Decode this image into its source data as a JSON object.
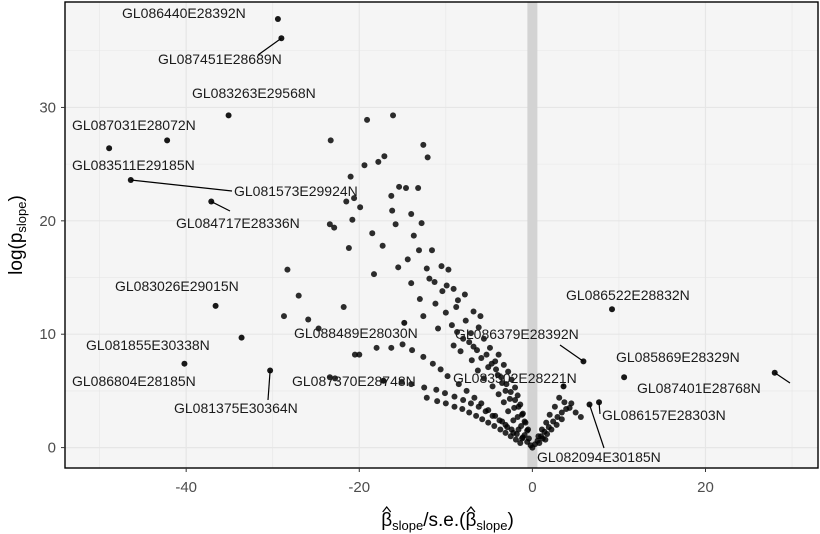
{
  "chart_data": {
    "type": "scatter",
    "title": "",
    "xlabel_parts": {
      "base": "β",
      "sub": "slope",
      "mid": "/s.e.(",
      "base2": "β",
      "sub2": "slope",
      "end": ")"
    },
    "ylabel_parts": {
      "base": "log(p",
      "sub": "slope",
      "end": ")"
    },
    "xlim": [
      -54,
      33
    ],
    "ylim": [
      -1.8,
      39.3
    ],
    "x_ticks": [
      -40,
      -20,
      0,
      20
    ],
    "y_ticks": [
      0,
      10,
      20,
      30
    ],
    "grid": true,
    "reference_band_x": 0,
    "colors": {
      "points": "#000000",
      "panel": "#f5f5f5",
      "grid": "#e6e6e6",
      "band": "#d3d3d3",
      "border": "#000000"
    },
    "labeled_points": [
      {
        "label": "GL086440E28392N",
        "x": -29.4,
        "y": 37.8
      },
      {
        "label": "GL087451E28689N",
        "x": -29.0,
        "y": 36.1
      },
      {
        "label": "GL083263E29568N",
        "x": -35.1,
        "y": 29.3
      },
      {
        "label": "GL087031E28072N",
        "x": -42.2,
        "y": 27.1
      },
      {
        "label": "GL083511E29185N",
        "x": -48.9,
        "y": 26.4
      },
      {
        "label": "GL081573E29924N",
        "x": -46.4,
        "y": 23.6
      },
      {
        "label": "GL084717E28336N",
        "x": -37.1,
        "y": 21.7
      },
      {
        "label": "GL083026E29015N",
        "x": -36.6,
        "y": 12.5
      },
      {
        "label": "GL081855E30338N",
        "x": -33.6,
        "y": 9.7
      },
      {
        "label": "GL086804E28185N",
        "x": -40.2,
        "y": 7.4
      },
      {
        "label": "GL081375E30364N",
        "x": -30.3,
        "y": 6.8
      },
      {
        "label": "GL088489E28030N",
        "x": -14.8,
        "y": 11.0
      },
      {
        "label": "GL087370E28748N",
        "x": -17.2,
        "y": 5.9
      },
      {
        "label": "GL086379E28392N",
        "x": 5.9,
        "y": 7.6
      },
      {
        "label": "GL083502E28221N",
        "x": 3.6,
        "y": 5.4
      },
      {
        "label": "GL086522E28832N",
        "x": 9.2,
        "y": 12.2
      },
      {
        "label": "GL085869E28329N",
        "x": 10.6,
        "y": 6.2
      },
      {
        "label": "GL087401E28768N",
        "x": 28.0,
        "y": 6.6
      },
      {
        "label": "GL086157E28303N",
        "x": 7.7,
        "y": 4.0
      },
      {
        "label": "GL082094E30185N",
        "x": 6.6,
        "y": 3.8
      }
    ],
    "points": [
      [
        -16.1,
        29.3
      ],
      [
        -19.1,
        28.9
      ],
      [
        -12.6,
        26.7
      ],
      [
        -23.3,
        27.1
      ],
      [
        -12.1,
        25.6
      ],
      [
        -17.1,
        25.7
      ],
      [
        -17.8,
        25.2
      ],
      [
        -19.4,
        24.9
      ],
      [
        -21.0,
        23.9
      ],
      [
        -15.4,
        23.0
      ],
      [
        -14.6,
        22.9
      ],
      [
        -13.2,
        22.9
      ],
      [
        -20.6,
        22.0
      ],
      [
        -21.5,
        21.7
      ],
      [
        -16.3,
        22.2
      ],
      [
        -14.0,
        20.6
      ],
      [
        -16.2,
        20.9
      ],
      [
        -19.9,
        21.2
      ],
      [
        -20.8,
        20.1
      ],
      [
        -15.8,
        19.7
      ],
      [
        -12.8,
        19.8
      ],
      [
        -23.4,
        19.7
      ],
      [
        -22.9,
        19.4
      ],
      [
        -13.7,
        18.7
      ],
      [
        -18.5,
        18.9
      ],
      [
        -17.3,
        17.8
      ],
      [
        -13.1,
        17.4
      ],
      [
        -11.6,
        17.4
      ],
      [
        -21.2,
        17.6
      ],
      [
        -14.4,
        16.6
      ],
      [
        -10.5,
        16.0
      ],
      [
        -9.7,
        15.7
      ],
      [
        -15.5,
        15.9
      ],
      [
        -18.3,
        15.3
      ],
      [
        -12.2,
        15.8
      ],
      [
        -11.9,
        14.9
      ],
      [
        -11.3,
        14.6
      ],
      [
        -9.9,
        14.3
      ],
      [
        -9.1,
        14.0
      ],
      [
        -14.0,
        14.5
      ],
      [
        -10.4,
        13.8
      ],
      [
        -7.8,
        13.5
      ],
      [
        -13.0,
        13.1
      ],
      [
        -8.6,
        13.0
      ],
      [
        -11.2,
        12.7
      ],
      [
        -8.8,
        12.4
      ],
      [
        -6.8,
        12.0
      ],
      [
        -10.0,
        11.9
      ],
      [
        -12.6,
        11.6
      ],
      [
        -7.7,
        11.2
      ],
      [
        -9.3,
        10.8
      ],
      [
        -6.2,
        10.6
      ],
      [
        -8.7,
        10.2
      ],
      [
        -10.9,
        10.5
      ],
      [
        -5.6,
        9.6
      ],
      [
        -7.3,
        9.3
      ],
      [
        -9.1,
        9.0
      ],
      [
        -4.9,
        8.8
      ],
      [
        -6.4,
        8.6
      ],
      [
        -8.3,
        8.5
      ],
      [
        -3.9,
        8.2
      ],
      [
        -5.9,
        7.9
      ],
      [
        -4.3,
        7.6
      ],
      [
        -7.0,
        7.7
      ],
      [
        -3.3,
        7.3
      ],
      [
        -5.1,
        7.1
      ],
      [
        -2.8,
        6.7
      ],
      [
        -6.3,
        6.8
      ],
      [
        -4.0,
        6.4
      ],
      [
        -2.4,
        6.0
      ],
      [
        -5.6,
        6.1
      ],
      [
        -3.5,
        5.7
      ],
      [
        -2.0,
        5.3
      ],
      [
        -4.6,
        5.4
      ],
      [
        -3.1,
        5.0
      ],
      [
        -1.7,
        4.6
      ],
      [
        -3.9,
        4.7
      ],
      [
        -2.6,
        4.3
      ],
      [
        -1.4,
        3.8
      ],
      [
        -3.3,
        4.0
      ],
      [
        -2.1,
        3.5
      ],
      [
        -1.1,
        3.0
      ],
      [
        -2.8,
        3.2
      ],
      [
        -1.7,
        2.7
      ],
      [
        -0.8,
        2.2
      ],
      [
        -2.2,
        2.4
      ],
      [
        -1.3,
        1.9
      ],
      [
        -0.6,
        1.5
      ],
      [
        -1.6,
        1.6
      ],
      [
        -0.9,
        1.1
      ],
      [
        -0.4,
        0.8
      ],
      [
        -1.1,
        0.9
      ],
      [
        -0.6,
        0.5
      ],
      [
        -0.2,
        0.2
      ],
      [
        0.0,
        0.0
      ],
      [
        0.3,
        0.3
      ],
      [
        0.6,
        0.6
      ],
      [
        1.0,
        1.0
      ],
      [
        1.4,
        1.4
      ],
      [
        1.9,
        1.8
      ],
      [
        2.4,
        2.3
      ],
      [
        2.9,
        2.7
      ],
      [
        3.4,
        3.1
      ],
      [
        3.9,
        3.4
      ],
      [
        4.5,
        3.9
      ],
      [
        1.2,
        0.8
      ],
      [
        1.7,
        1.2
      ],
      [
        2.2,
        1.6
      ],
      [
        2.8,
        2.0
      ],
      [
        3.4,
        2.5
      ],
      [
        0.8,
        0.4
      ],
      [
        1.5,
        0.7
      ],
      [
        -28.3,
        15.7
      ],
      [
        -27.0,
        13.4
      ],
      [
        -28.7,
        11.6
      ],
      [
        -25.9,
        11.3
      ],
      [
        -24.7,
        10.5
      ],
      [
        -21.8,
        12.4
      ],
      [
        -23.4,
        6.2
      ],
      [
        -22.8,
        6.1
      ],
      [
        -20.5,
        8.2
      ],
      [
        -20.0,
        8.2
      ],
      [
        -18.0,
        8.8
      ],
      [
        -16.3,
        8.8
      ],
      [
        -15.1,
        5.8
      ],
      [
        -14.0,
        5.6
      ],
      [
        -12.5,
        5.3
      ],
      [
        -11.1,
        5.1
      ],
      [
        -10.1,
        4.8
      ],
      [
        -9.0,
        4.5
      ],
      [
        -8.0,
        4.2
      ],
      [
        -7.1,
        3.9
      ],
      [
        -6.2,
        3.6
      ],
      [
        -5.4,
        3.2
      ],
      [
        -4.6,
        2.8
      ],
      [
        -3.8,
        2.4
      ],
      [
        -3.1,
        2.0
      ],
      [
        -2.4,
        1.6
      ],
      [
        -1.8,
        1.2
      ],
      [
        -1.2,
        0.8
      ],
      [
        -12.2,
        4.4
      ],
      [
        -11.0,
        4.1
      ],
      [
        -10.0,
        3.9
      ],
      [
        -9.0,
        3.6
      ],
      [
        -8.1,
        3.4
      ],
      [
        -7.3,
        3.1
      ],
      [
        -6.5,
        2.8
      ],
      [
        -5.8,
        2.5
      ],
      [
        -5.1,
        2.2
      ],
      [
        -4.4,
        1.9
      ],
      [
        -3.7,
        1.6
      ],
      [
        -3.1,
        1.3
      ],
      [
        -2.5,
        1.0
      ],
      [
        -1.9,
        0.7
      ],
      [
        -1.4,
        0.4
      ],
      [
        -6.0,
        11.6
      ],
      [
        -7.1,
        10.1
      ],
      [
        -8.0,
        9.6
      ],
      [
        -6.8,
        8.9
      ],
      [
        -5.3,
        8.2
      ],
      [
        -4.7,
        7.4
      ],
      [
        -4.2,
        6.9
      ],
      [
        -3.6,
        6.2
      ],
      [
        -3.0,
        5.6
      ],
      [
        -2.5,
        4.9
      ],
      [
        -2.0,
        4.2
      ],
      [
        -1.6,
        3.6
      ],
      [
        -1.2,
        2.9
      ],
      [
        -0.9,
        2.3
      ],
      [
        -0.5,
        1.6
      ],
      [
        2.6,
        3.6
      ],
      [
        3.1,
        4.4
      ],
      [
        3.7,
        4.0
      ],
      [
        4.3,
        3.5
      ],
      [
        5.0,
        3.1
      ],
      [
        5.6,
        2.7
      ],
      [
        2.0,
        2.9
      ],
      [
        1.6,
        2.2
      ],
      [
        1.1,
        1.6
      ],
      [
        0.7,
        1.0
      ],
      [
        -9.8,
        6.3
      ],
      [
        -10.6,
        6.9
      ],
      [
        -11.5,
        7.4
      ],
      [
        -12.6,
        8.0
      ],
      [
        -13.9,
        8.6
      ],
      [
        -15.0,
        9.1
      ],
      [
        -8.5,
        5.6
      ],
      [
        -7.6,
        5.0
      ],
      [
        -6.7,
        4.4
      ],
      [
        -5.9,
        3.9
      ],
      [
        -5.1,
        3.3
      ],
      [
        -4.3,
        2.8
      ],
      [
        -3.5,
        2.3
      ],
      [
        -2.9,
        1.8
      ],
      [
        -2.2,
        1.3
      ]
    ]
  }
}
